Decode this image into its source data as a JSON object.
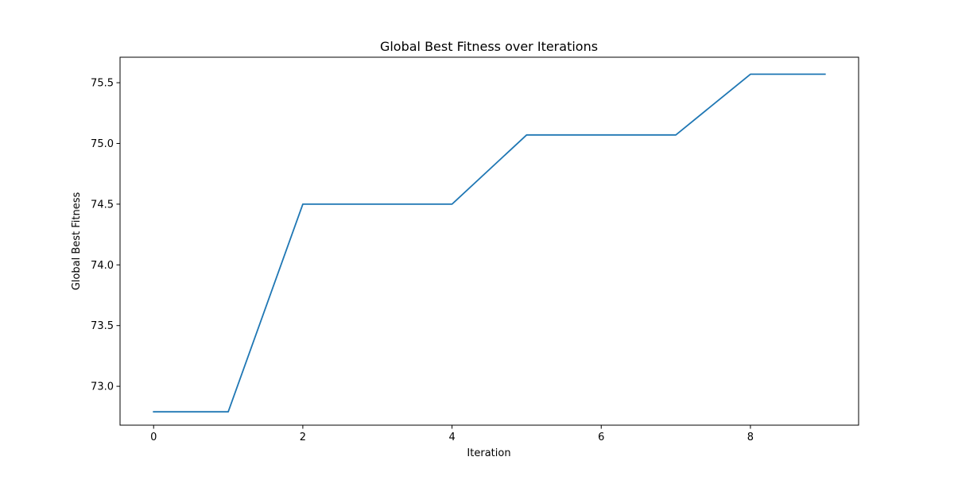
{
  "chart_data": {
    "type": "line",
    "title": "Global Best Fitness over Iterations",
    "xlabel": "Iteration",
    "ylabel": "Global Best Fitness",
    "xlim": [
      -0.45,
      9.45
    ],
    "ylim": [
      72.68,
      75.71
    ],
    "xticks": [
      0,
      2,
      4,
      6,
      8
    ],
    "xtick_labels": [
      "0",
      "2",
      "4",
      "6",
      "8"
    ],
    "yticks": [
      73.0,
      73.5,
      74.0,
      74.5,
      75.0,
      75.5
    ],
    "ytick_labels": [
      "73.0",
      "73.5",
      "74.0",
      "74.5",
      "75.0",
      "75.5"
    ],
    "grid": false,
    "series": [
      {
        "color": "#1f77b4",
        "x": [
          0,
          1,
          2,
          3,
          4,
          5,
          6,
          7,
          8,
          9
        ],
        "y": [
          72.79,
          72.79,
          74.5,
          74.5,
          74.5,
          75.07,
          75.07,
          75.07,
          75.57,
          75.57
        ]
      }
    ]
  }
}
